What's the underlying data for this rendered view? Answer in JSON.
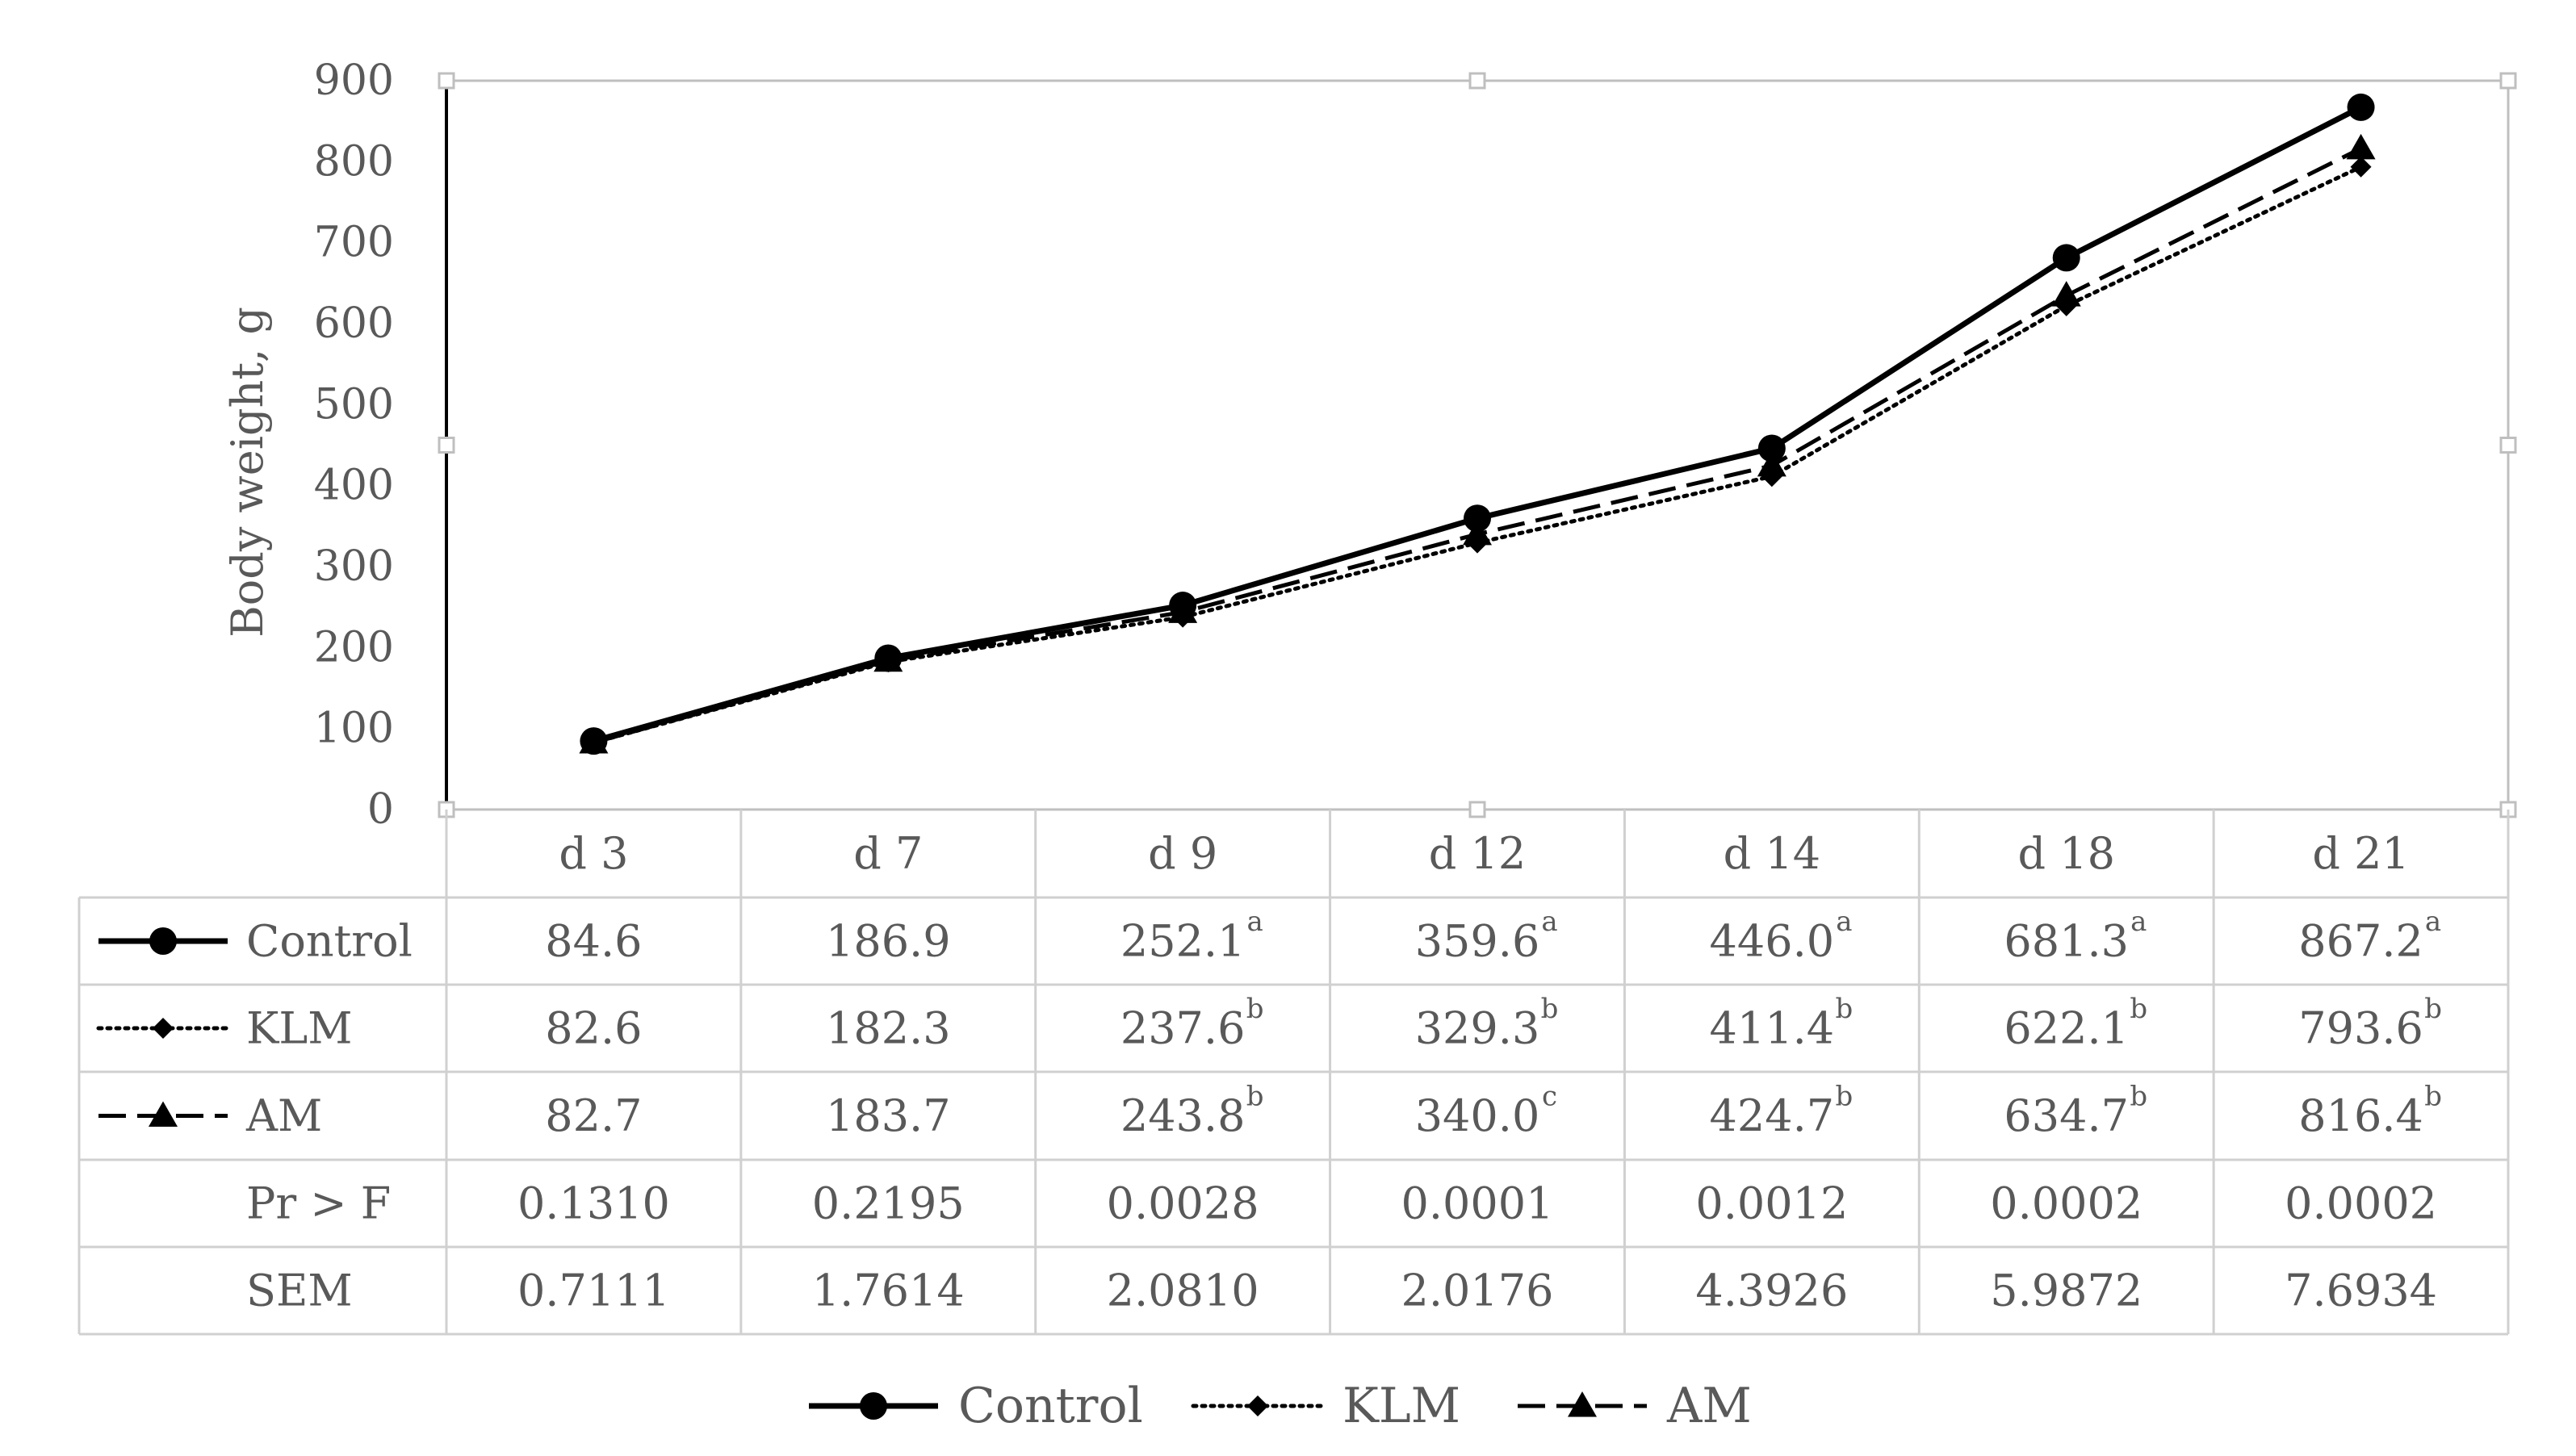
{
  "chart_data": {
    "type": "line",
    "ylabel": "Body weight, g",
    "xlabel": "",
    "title": "",
    "ylim": [
      0,
      900
    ],
    "yticks": [
      0,
      100,
      200,
      300,
      400,
      500,
      600,
      700,
      800,
      900
    ],
    "categories": [
      "d 3",
      "d 7",
      "d 9",
      "d 12",
      "d 14",
      "d 18",
      "d 21"
    ],
    "grid": false,
    "legend_position": "bottom",
    "series": [
      {
        "name": "Control",
        "values": [
          84.6,
          186.9,
          252.1,
          359.6,
          446.0,
          681.3,
          867.2
        ],
        "labels": [
          "84.6",
          "186.9",
          "252.1",
          "359.6",
          "446.0",
          "681.3",
          "867.2"
        ],
        "superscripts": [
          "",
          "",
          "a",
          "a",
          "a",
          "a",
          "a"
        ],
        "marker": "circle",
        "line_style": "solid",
        "color": "#000000"
      },
      {
        "name": "KLM",
        "values": [
          82.6,
          182.3,
          237.6,
          329.3,
          411.4,
          622.1,
          793.6
        ],
        "labels": [
          "82.6",
          "182.3",
          "237.6",
          "329.3",
          "411.4",
          "622.1",
          "793.6"
        ],
        "superscripts": [
          "",
          "",
          "b",
          "b",
          "b",
          "b",
          "b"
        ],
        "marker": "diamond",
        "line_style": "dotted",
        "color": "#000000"
      },
      {
        "name": "AM",
        "values": [
          82.7,
          183.7,
          243.8,
          340.0,
          424.7,
          634.7,
          816.4
        ],
        "labels": [
          "82.7",
          "183.7",
          "243.8",
          "340.0",
          "424.7",
          "634.7",
          "816.4"
        ],
        "superscripts": [
          "",
          "",
          "b",
          "c",
          "b",
          "b",
          "b"
        ],
        "marker": "triangle",
        "line_style": "dashed",
        "color": "#000000"
      }
    ],
    "extra_rows": [
      {
        "label": "Pr > F",
        "values": [
          "0.1310",
          "0.2195",
          "0.0028",
          "0.0001",
          "0.0012",
          "0.0002",
          "0.0002"
        ]
      },
      {
        "label": "SEM",
        "values": [
          "0.7111",
          "1.7614",
          "2.0810",
          "2.0176",
          "4.3926",
          "5.9872",
          "7.6934"
        ]
      }
    ]
  }
}
